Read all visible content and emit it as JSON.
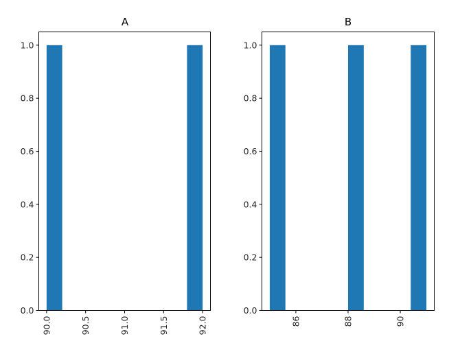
{
  "chart_data": [
    {
      "type": "bar",
      "title": "A",
      "xlabel": "",
      "ylabel": "",
      "xlim": [
        89.9,
        92.1
      ],
      "ylim": [
        0,
        1.05
      ],
      "xticks": [
        "90.0",
        "90.5",
        "91.0",
        "91.5",
        "92.0"
      ],
      "yticks": [
        "0.0",
        "0.2",
        "0.4",
        "0.6",
        "0.8",
        "1.0"
      ],
      "bars": [
        {
          "x0": 90.0,
          "x1": 90.2,
          "value": 1.0
        },
        {
          "x0": 91.8,
          "x1": 92.0,
          "value": 1.0
        }
      ],
      "grid": false,
      "color": "#1f77b4"
    },
    {
      "type": "bar",
      "title": "B",
      "xlabel": "",
      "ylabel": "",
      "xlim": [
        84.7,
        91.3
      ],
      "ylim": [
        0,
        1.05
      ],
      "xticks": [
        "86",
        "88",
        "90"
      ],
      "yticks": [
        "0.0",
        "0.2",
        "0.4",
        "0.6",
        "0.8",
        "1.0"
      ],
      "bars": [
        {
          "x0": 85.0,
          "x1": 85.6,
          "value": 1.0
        },
        {
          "x0": 88.0,
          "x1": 88.6,
          "value": 1.0
        },
        {
          "x0": 90.4,
          "x1": 91.0,
          "value": 1.0
        }
      ],
      "grid": false,
      "color": "#1f77b4"
    }
  ]
}
